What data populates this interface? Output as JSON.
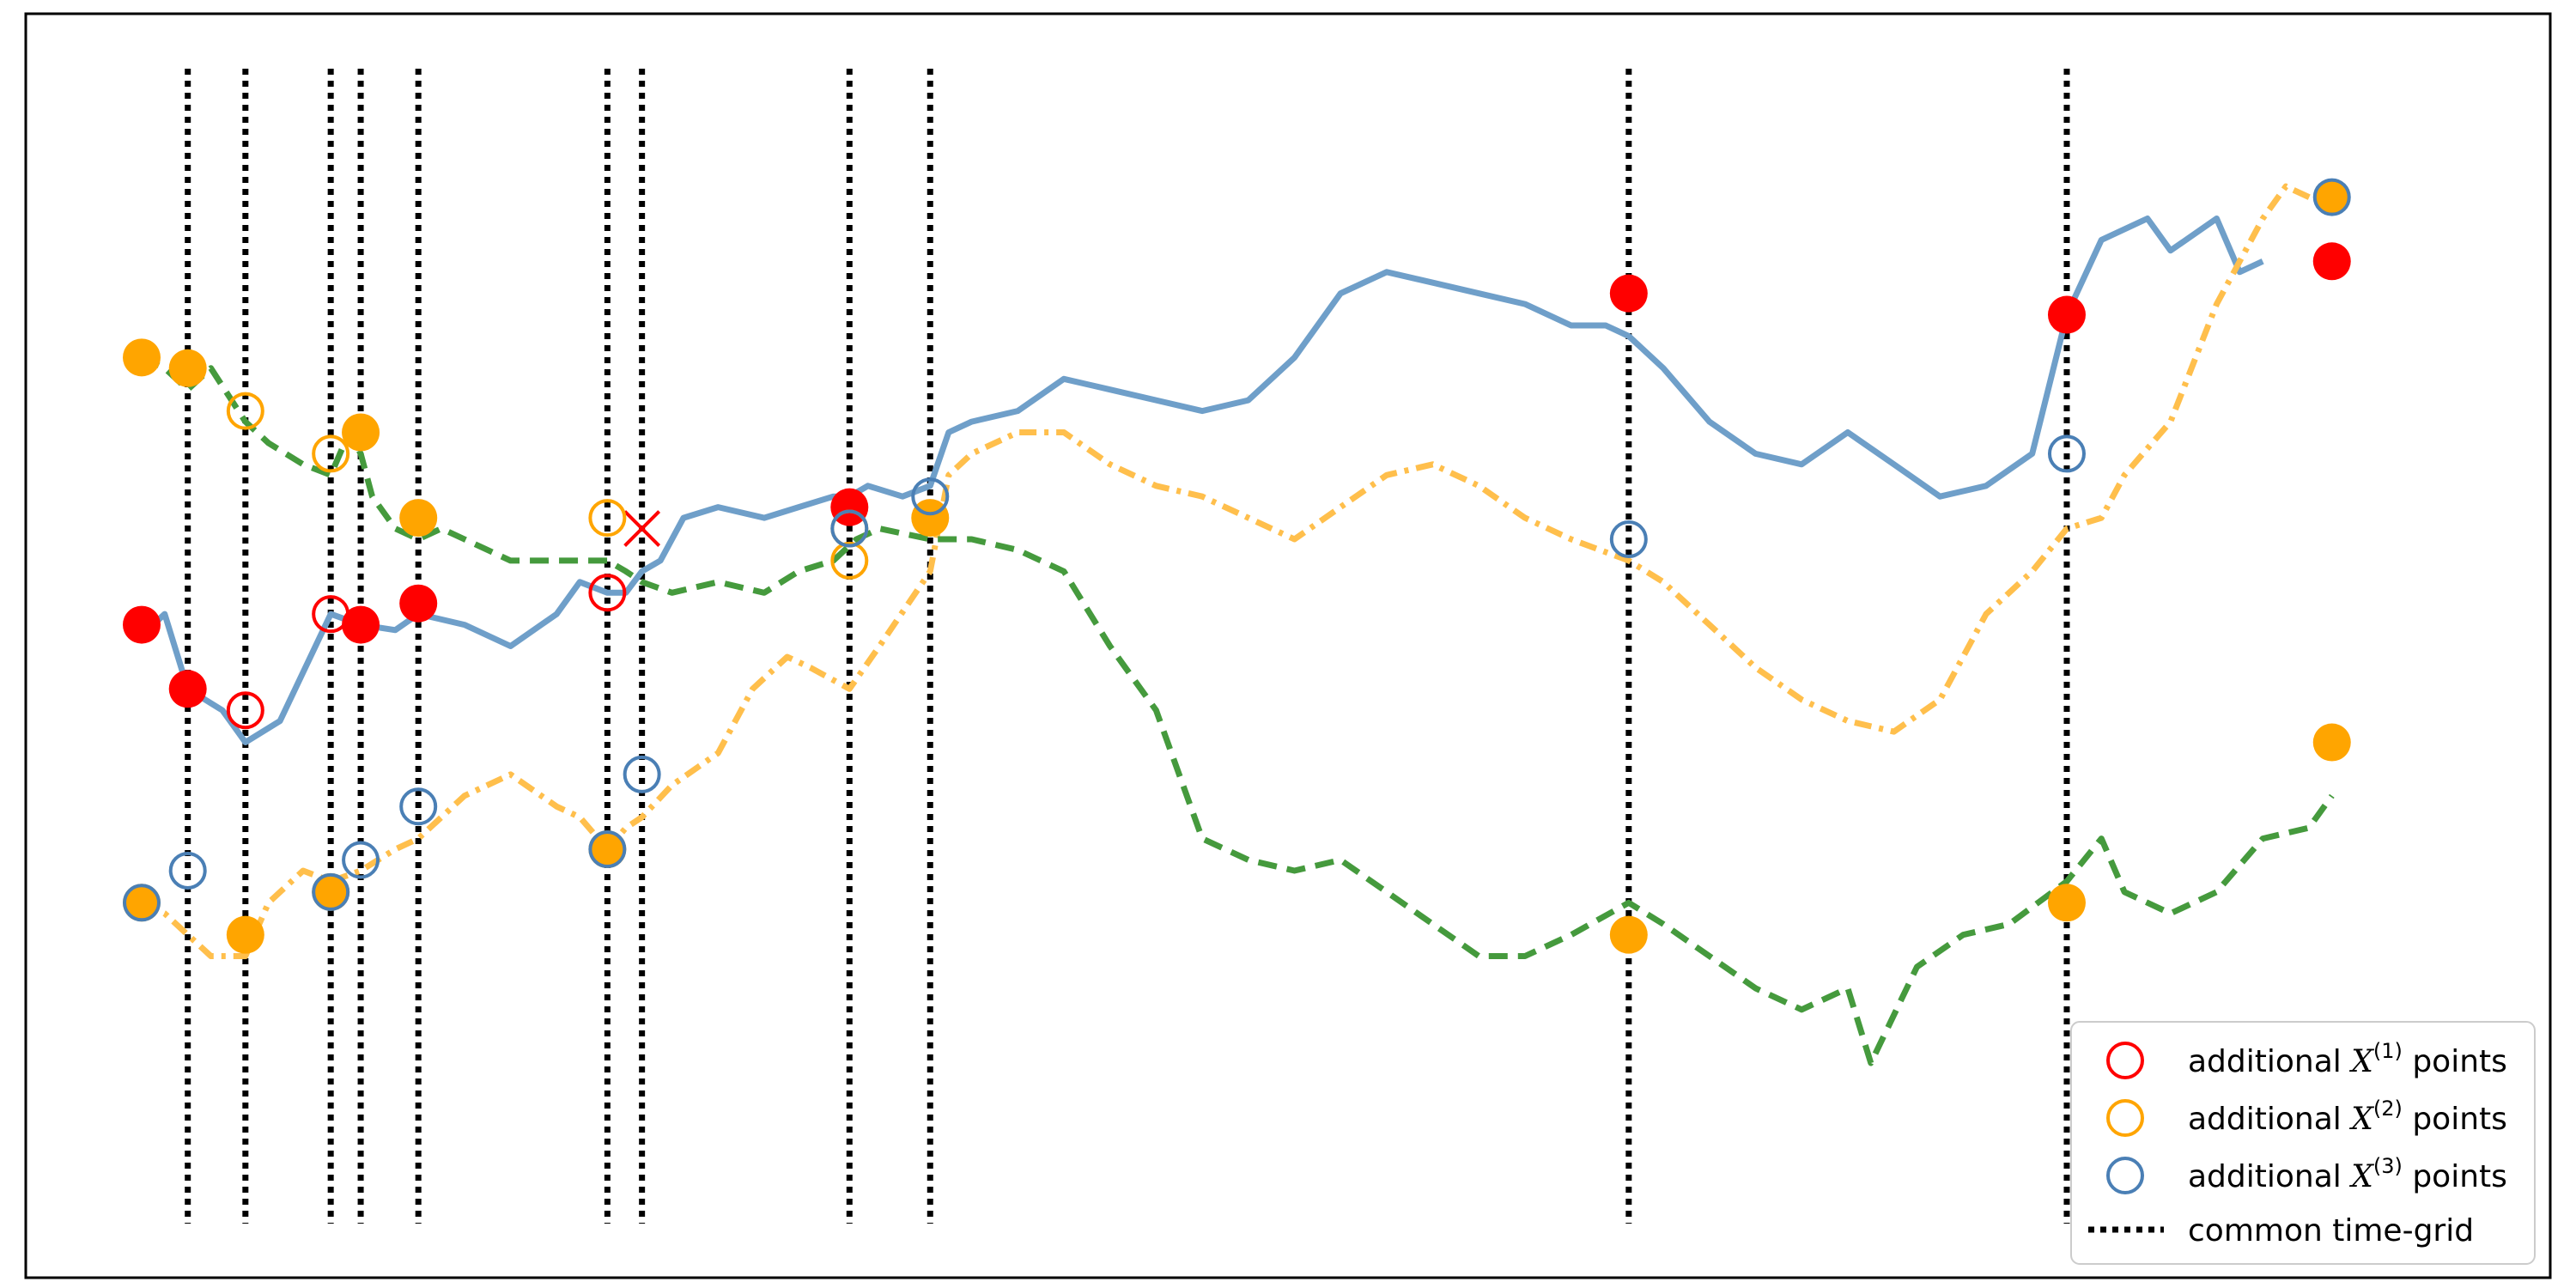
{
  "chart_data": {
    "type": "line",
    "title": "",
    "xlabel": "",
    "ylabel": "",
    "xlim": [
      0,
      100
    ],
    "ylim": [
      0,
      100
    ],
    "grid": false,
    "axis_ticks": false,
    "legend_position": "bottom-right",
    "common_time_grid": [
      2,
      4.5,
      8.2,
      9.5,
      12,
      20.2,
      21.7,
      30.7,
      34.2,
      64.5,
      83.5
    ],
    "series": [
      {
        "color": "#6f9fc9",
        "style": "solid",
        "points": [
          [
            0,
            51
          ],
          [
            1,
            53
          ],
          [
            2,
            46
          ],
          [
            3.5,
            44
          ],
          [
            4.5,
            41
          ],
          [
            6,
            43
          ],
          [
            8.2,
            53
          ],
          [
            9.5,
            52
          ],
          [
            11,
            51.5
          ],
          [
            12,
            53
          ],
          [
            14,
            52
          ],
          [
            16,
            50
          ],
          [
            18,
            53
          ],
          [
            19,
            56
          ],
          [
            20.2,
            55
          ],
          [
            21,
            55
          ],
          [
            21.7,
            57
          ],
          [
            22.5,
            58
          ],
          [
            23.5,
            62
          ],
          [
            25,
            63
          ],
          [
            27,
            62
          ],
          [
            28.5,
            63
          ],
          [
            30,
            64
          ],
          [
            30.7,
            64
          ],
          [
            31.5,
            65
          ],
          [
            33,
            64
          ],
          [
            34.2,
            65
          ],
          [
            35,
            70
          ],
          [
            36,
            71
          ],
          [
            38,
            72
          ],
          [
            40,
            75
          ],
          [
            42,
            74
          ],
          [
            44,
            73
          ],
          [
            46,
            72
          ],
          [
            48,
            73
          ],
          [
            50,
            77
          ],
          [
            52,
            83
          ],
          [
            54,
            85
          ],
          [
            56,
            84
          ],
          [
            58,
            83
          ],
          [
            60,
            82
          ],
          [
            62,
            80
          ],
          [
            63.5,
            80
          ],
          [
            64.5,
            79
          ],
          [
            66,
            76
          ],
          [
            68,
            71
          ],
          [
            70,
            68
          ],
          [
            72,
            67
          ],
          [
            74,
            70
          ],
          [
            76,
            67
          ],
          [
            78,
            64
          ],
          [
            80,
            65
          ],
          [
            82,
            68
          ],
          [
            83.5,
            81
          ],
          [
            85,
            88
          ],
          [
            87,
            90
          ],
          [
            88,
            87
          ],
          [
            90,
            90
          ],
          [
            91,
            85
          ],
          [
            92,
            86
          ]
        ]
      },
      {
        "color": "#ffbf4c",
        "style": "dashdot",
        "points": [
          [
            0,
            26
          ],
          [
            1,
            25
          ],
          [
            2,
            23
          ],
          [
            3,
            21
          ],
          [
            4.5,
            21
          ],
          [
            5.5,
            26
          ],
          [
            7,
            29
          ],
          [
            8.2,
            28
          ],
          [
            9.5,
            29
          ],
          [
            11,
            31
          ],
          [
            12,
            32
          ],
          [
            14,
            36
          ],
          [
            16,
            38
          ],
          [
            18,
            35
          ],
          [
            19,
            34
          ],
          [
            20.2,
            31
          ],
          [
            21,
            33
          ],
          [
            21.7,
            34
          ],
          [
            23,
            37
          ],
          [
            25,
            40
          ],
          [
            26.5,
            46
          ],
          [
            28,
            49
          ],
          [
            29,
            48
          ],
          [
            30.7,
            46
          ],
          [
            32,
            50
          ],
          [
            34.2,
            57
          ],
          [
            35,
            66
          ],
          [
            36,
            68
          ],
          [
            38,
            70
          ],
          [
            40,
            70
          ],
          [
            42,
            67
          ],
          [
            44,
            65
          ],
          [
            46,
            64
          ],
          [
            48,
            62
          ],
          [
            50,
            60
          ],
          [
            52,
            63
          ],
          [
            54,
            66
          ],
          [
            56,
            67
          ],
          [
            58,
            65
          ],
          [
            60,
            62
          ],
          [
            62,
            60
          ],
          [
            64.5,
            58
          ],
          [
            66,
            56
          ],
          [
            68,
            52
          ],
          [
            70,
            48
          ],
          [
            72,
            45
          ],
          [
            74,
            43
          ],
          [
            76,
            42
          ],
          [
            78,
            45
          ],
          [
            80,
            53
          ],
          [
            82,
            57
          ],
          [
            83.5,
            61
          ],
          [
            85,
            62
          ],
          [
            86,
            66
          ],
          [
            88,
            71
          ],
          [
            90,
            82
          ],
          [
            92,
            90
          ],
          [
            93,
            93
          ],
          [
            95,
            91
          ]
        ]
      },
      {
        "color": "#459a3d",
        "style": "dashed",
        "points": [
          [
            0,
            77
          ],
          [
            1,
            76
          ],
          [
            2,
            74
          ],
          [
            3,
            76
          ],
          [
            4.5,
            71
          ],
          [
            5.5,
            69
          ],
          [
            7,
            67
          ],
          [
            8.2,
            66
          ],
          [
            9,
            70
          ],
          [
            9.5,
            68
          ],
          [
            10,
            64
          ],
          [
            11,
            61
          ],
          [
            12,
            60
          ],
          [
            13,
            61
          ],
          [
            14,
            60
          ],
          [
            16,
            58
          ],
          [
            18,
            58
          ],
          [
            20.2,
            58
          ],
          [
            21,
            57
          ],
          [
            21.7,
            56
          ],
          [
            23,
            55
          ],
          [
            25,
            56
          ],
          [
            27,
            55
          ],
          [
            28.5,
            57
          ],
          [
            30,
            58
          ],
          [
            31,
            60
          ],
          [
            32,
            61
          ],
          [
            34.2,
            60
          ],
          [
            36,
            60
          ],
          [
            38,
            59
          ],
          [
            40,
            57
          ],
          [
            42,
            50
          ],
          [
            44,
            44
          ],
          [
            46,
            32
          ],
          [
            48,
            30
          ],
          [
            50,
            29
          ],
          [
            52,
            30
          ],
          [
            54,
            27
          ],
          [
            56,
            24
          ],
          [
            58,
            21
          ],
          [
            60,
            21
          ],
          [
            62,
            23
          ],
          [
            64.5,
            26
          ],
          [
            66,
            24
          ],
          [
            68,
            21
          ],
          [
            70,
            18
          ],
          [
            72,
            16
          ],
          [
            74,
            18
          ],
          [
            75,
            11
          ],
          [
            77,
            20
          ],
          [
            79,
            23
          ],
          [
            81,
            24
          ],
          [
            83.5,
            28
          ],
          [
            85,
            32
          ],
          [
            86,
            27
          ],
          [
            88,
            25
          ],
          [
            90,
            27
          ],
          [
            92,
            32
          ],
          [
            94,
            33
          ],
          [
            95,
            36
          ]
        ]
      }
    ],
    "observations": [
      {
        "series": 0,
        "t": 0,
        "value": 52,
        "kind": "filled",
        "color": "#ff0000"
      },
      {
        "series": 0,
        "t": 2,
        "value": 46,
        "kind": "filled",
        "color": "#ff0000"
      },
      {
        "series": 0,
        "t": 4.5,
        "value": 44,
        "kind": "hollow",
        "color": "#ff0000"
      },
      {
        "series": 0,
        "t": 8.2,
        "value": 53,
        "kind": "hollow",
        "color": "#ff0000"
      },
      {
        "series": 0,
        "t": 9.5,
        "value": 52,
        "kind": "filled",
        "color": "#ff0000"
      },
      {
        "series": 0,
        "t": 12,
        "value": 54,
        "kind": "filled",
        "color": "#ff0000"
      },
      {
        "series": 0,
        "t": 20.2,
        "value": 55,
        "kind": "hollow",
        "color": "#ff0000"
      },
      {
        "series": 0,
        "t": 21.7,
        "value": 61,
        "kind": "cross",
        "color": "#ff0000"
      },
      {
        "series": 0,
        "t": 30.7,
        "value": 63,
        "kind": "filled",
        "color": "#ff0000"
      },
      {
        "series": 0,
        "t": 64.5,
        "value": 83,
        "kind": "filled",
        "color": "#ff0000"
      },
      {
        "series": 0,
        "t": 83.5,
        "value": 81,
        "kind": "filled",
        "color": "#ff0000"
      },
      {
        "series": 0,
        "t": 95,
        "value": 86,
        "kind": "filled",
        "color": "#ff0000"
      },
      {
        "series": 1,
        "t": 0,
        "value": 77,
        "kind": "filled",
        "color": "#ffa500"
      },
      {
        "series": 1,
        "t": 2,
        "value": 76,
        "kind": "filled",
        "color": "#ffa500"
      },
      {
        "series": 1,
        "t": 4.5,
        "value": 72,
        "kind": "hollow",
        "color": "#ffa500"
      },
      {
        "series": 1,
        "t": 8.2,
        "value": 68,
        "kind": "hollow",
        "color": "#ffa500"
      },
      {
        "series": 1,
        "t": 9.5,
        "value": 70,
        "kind": "filled",
        "color": "#ffa500"
      },
      {
        "series": 1,
        "t": 12,
        "value": 62,
        "kind": "filled",
        "color": "#ffa500"
      },
      {
        "series": 1,
        "t": 20.2,
        "value": 62,
        "kind": "hollow",
        "color": "#ffa500"
      },
      {
        "series": 1,
        "t": 30.7,
        "value": 61,
        "kind": "hollow",
        "color": "#ffa500"
      },
      {
        "series": 1,
        "t": 34.2,
        "value": 62,
        "kind": "filled",
        "color": "#ffa500"
      },
      {
        "series": 1,
        "t": 30.7,
        "value": 58,
        "kind": "hollow",
        "color": "#ffa500"
      },
      {
        "series": 1,
        "t": 0,
        "value": 26,
        "kind": "filled",
        "color": "#ffa500"
      },
      {
        "series": 1,
        "t": 4.5,
        "value": 23,
        "kind": "filled",
        "color": "#ffa500"
      },
      {
        "series": 1,
        "t": 8.2,
        "value": 27,
        "kind": "filled",
        "color": "#ffa500"
      },
      {
        "series": 1,
        "t": 20.2,
        "value": 31,
        "kind": "filled",
        "color": "#ffa500"
      },
      {
        "series": 2,
        "t": 64.5,
        "value": 23,
        "kind": "filled",
        "color": "#ffa500"
      },
      {
        "series": 2,
        "t": 83.5,
        "value": 26,
        "kind": "filled",
        "color": "#ffa500"
      },
      {
        "series": 2,
        "t": 95,
        "value": 41,
        "kind": "filled",
        "color": "#ffa500"
      },
      {
        "series": 0,
        "t": 95,
        "value": 92,
        "kind": "filled-edge",
        "color": "#ffa500"
      },
      {
        "series": 2,
        "t": 2,
        "value": 29,
        "kind": "hollow",
        "color": "#4a7fb5"
      },
      {
        "series": 2,
        "t": 9.5,
        "value": 30,
        "kind": "hollow",
        "color": "#4a7fb5"
      },
      {
        "series": 2,
        "t": 12,
        "value": 35,
        "kind": "hollow",
        "color": "#4a7fb5"
      },
      {
        "series": 2,
        "t": 21.7,
        "value": 38,
        "kind": "hollow",
        "color": "#4a7fb5"
      },
      {
        "series": 2,
        "t": 34.2,
        "value": 64,
        "kind": "hollow",
        "color": "#4a7fb5"
      },
      {
        "series": 2,
        "t": 64.5,
        "value": 60,
        "kind": "hollow",
        "color": "#4a7fb5"
      },
      {
        "series": 2,
        "t": 83.5,
        "value": 68,
        "kind": "hollow",
        "color": "#4a7fb5"
      },
      {
        "series": 2,
        "t": 0,
        "value": 26,
        "kind": "edge",
        "color": "#4a7fb5"
      },
      {
        "series": 2,
        "t": 8.2,
        "value": 27,
        "kind": "edge",
        "color": "#4a7fb5"
      },
      {
        "series": 2,
        "t": 20.2,
        "value": 31,
        "kind": "edge",
        "color": "#4a7fb5"
      },
      {
        "series": 2,
        "t": 30.7,
        "value": 61,
        "kind": "edge",
        "color": "#4a7fb5"
      }
    ],
    "legend": [
      {
        "marker": "hollow-circle",
        "color": "#ff0000",
        "text_before": "additional ",
        "symbol": "X",
        "superscript": "(1)",
        "text_after": " points"
      },
      {
        "marker": "hollow-circle",
        "color": "#ffa500",
        "text_before": "additional ",
        "symbol": "X",
        "superscript": "(2)",
        "text_after": " points"
      },
      {
        "marker": "hollow-circle",
        "color": "#4a7fb5",
        "text_before": "additional ",
        "symbol": "X",
        "superscript": "(3)",
        "text_after": " points"
      },
      {
        "marker": "dotted-line",
        "color": "#000000",
        "text": "common time-grid"
      }
    ]
  }
}
